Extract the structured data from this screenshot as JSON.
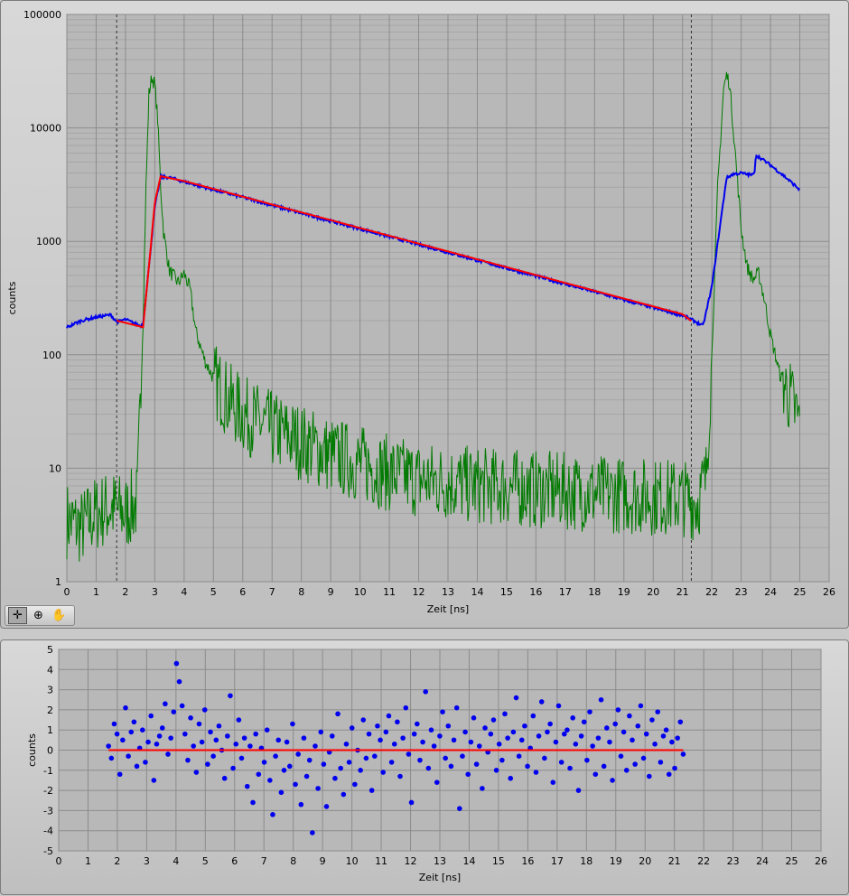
{
  "palette": {
    "tools": [
      {
        "name": "cursor-tool",
        "glyph": "✛"
      },
      {
        "name": "zoom-tool",
        "glyph": "⊕"
      },
      {
        "name": "pan-tool",
        "glyph": "✋"
      }
    ]
  },
  "colors": {
    "measured": "#0000ee",
    "fit": "#ff0000",
    "irf": "#007a00",
    "plot_bg": "#b8b8b8",
    "grid_major": "#8c8c8c",
    "grid_minor": "#a6a6a6"
  },
  "chart_data": [
    {
      "type": "line",
      "xlabel": "Zeit [ns]",
      "ylabel": "counts",
      "yscale": "log",
      "xlim": [
        0,
        26
      ],
      "ylim": [
        1,
        100000
      ],
      "grid": true,
      "x_ticks": [
        "0",
        "1",
        "2",
        "3",
        "4",
        "5",
        "6",
        "7",
        "8",
        "9",
        "10",
        "11",
        "12",
        "13",
        "14",
        "15",
        "16",
        "17",
        "18",
        "19",
        "20",
        "21",
        "22",
        "23",
        "24",
        "25",
        "26"
      ],
      "y_ticks": [
        "1",
        "10",
        "100",
        "1000",
        "10000",
        "100000"
      ],
      "cursors": [
        1.7,
        21.3
      ],
      "series": [
        {
          "color": "#0000ee",
          "points": [
            [
              0,
              175
            ],
            [
              0.5,
              200
            ],
            [
              1,
              215
            ],
            [
              1.5,
              225
            ],
            [
              1.7,
              195
            ],
            [
              2.0,
              205
            ],
            [
              2.5,
              180
            ],
            [
              2.6,
              185
            ],
            [
              2.8,
              600
            ],
            [
              3.0,
              2000
            ],
            [
              3.2,
              3700
            ],
            [
              3.5,
              3650
            ],
            [
              4,
              3350
            ],
            [
              5,
              2850
            ],
            [
              6,
              2450
            ],
            [
              7,
              2080
            ],
            [
              8,
              1770
            ],
            [
              9,
              1510
            ],
            [
              10,
              1290
            ],
            [
              11,
              1100
            ],
            [
              12,
              940
            ],
            [
              13,
              800
            ],
            [
              14,
              680
            ],
            [
              15,
              580
            ],
            [
              16,
              495
            ],
            [
              17,
              420
            ],
            [
              18,
              360
            ],
            [
              19,
              305
            ],
            [
              20,
              260
            ],
            [
              21,
              222
            ],
            [
              21.3,
              205
            ],
            [
              21.7,
              180
            ],
            [
              22.0,
              400
            ],
            [
              22.3,
              1500
            ],
            [
              22.5,
              3600
            ],
            [
              22.7,
              3900
            ],
            [
              23.0,
              4000
            ],
            [
              23.3,
              3850
            ],
            [
              23.45,
              3900
            ],
            [
              23.5,
              5800
            ],
            [
              24,
              4700
            ],
            [
              24.5,
              3700
            ],
            [
              25,
              2850
            ]
          ]
        },
        {
          "color": "#ff0000",
          "points": [
            [
              1.7,
              200
            ],
            [
              2.6,
              175
            ],
            [
              2.8,
              600
            ],
            [
              3.0,
              2200
            ],
            [
              3.2,
              3750
            ],
            [
              4,
              3400
            ],
            [
              5,
              2900
            ],
            [
              6,
              2480
            ],
            [
              7,
              2110
            ],
            [
              8,
              1800
            ],
            [
              9,
              1540
            ],
            [
              10,
              1310
            ],
            [
              11,
              1120
            ],
            [
              12,
              955
            ],
            [
              13,
              815
            ],
            [
              14,
              695
            ],
            [
              15,
              592
            ],
            [
              16,
              505
            ],
            [
              17,
              430
            ],
            [
              18,
              367
            ],
            [
              19,
              313
            ],
            [
              20,
              267
            ],
            [
              21,
              228
            ],
            [
              21.3,
              198
            ]
          ]
        },
        {
          "color": "#007a00",
          "points": [
            [
              0,
              3.5
            ],
            [
              0.5,
              3
            ],
            [
              1,
              4
            ],
            [
              1.5,
              4.5
            ],
            [
              2,
              4
            ],
            [
              2.4,
              5
            ],
            [
              2.5,
              30
            ],
            [
              2.6,
              200
            ],
            [
              2.7,
              3000
            ],
            [
              2.8,
              20000
            ],
            [
              2.9,
              28000
            ],
            [
              3.0,
              24000
            ],
            [
              3.1,
              12000
            ],
            [
              3.2,
              3000
            ],
            [
              3.3,
              1200
            ],
            [
              3.5,
              550
            ],
            [
              3.8,
              430
            ],
            [
              4.0,
              520
            ],
            [
              4.2,
              380
            ],
            [
              4.4,
              160
            ],
            [
              4.7,
              90
            ],
            [
              5,
              62
            ],
            [
              5.5,
              40
            ],
            [
              6,
              30
            ],
            [
              7,
              22
            ],
            [
              8,
              17
            ],
            [
              9,
              13
            ],
            [
              10,
              11
            ],
            [
              11,
              9
            ],
            [
              12,
              8
            ],
            [
              13,
              7.5
            ],
            [
              14,
              7
            ],
            [
              15,
              6.8
            ],
            [
              16,
              6.5
            ],
            [
              17,
              6.3
            ],
            [
              18,
              6
            ],
            [
              19,
              5.8
            ],
            [
              20,
              5.6
            ],
            [
              21,
              5.5
            ],
            [
              21.5,
              5
            ],
            [
              21.8,
              8
            ],
            [
              22.0,
              100
            ],
            [
              22.2,
              3000
            ],
            [
              22.4,
              22000
            ],
            [
              22.5,
              29000
            ],
            [
              22.6,
              25000
            ],
            [
              22.8,
              6000
            ],
            [
              23.0,
              1300
            ],
            [
              23.2,
              600
            ],
            [
              23.4,
              460
            ],
            [
              23.6,
              520
            ],
            [
              23.8,
              300
            ],
            [
              24.0,
              150
            ],
            [
              24.3,
              70
            ],
            [
              24.7,
              40
            ],
            [
              25,
              25
            ]
          ]
        }
      ]
    },
    {
      "type": "scatter",
      "xlabel": "Zeit [ns]",
      "ylabel": "counts",
      "xlim": [
        0,
        26
      ],
      "ylim": [
        -5,
        5
      ],
      "grid": true,
      "x_ticks": [
        "0",
        "1",
        "2",
        "3",
        "4",
        "5",
        "6",
        "7",
        "8",
        "9",
        "10",
        "11",
        "12",
        "13",
        "14",
        "15",
        "16",
        "17",
        "18",
        "19",
        "20",
        "21",
        "22",
        "23",
        "24",
        "25",
        "26"
      ],
      "y_ticks": [
        "-5",
        "-4",
        "-3",
        "-2",
        "-1",
        "0",
        "1",
        "2",
        "3",
        "4",
        "5"
      ],
      "fit_line": {
        "x": [
          1.7,
          21.3
        ],
        "y": 0,
        "color": "#ff0000"
      },
      "points_color": "#0000ee",
      "residuals": [
        0.2,
        -0.4,
        1.3,
        0.8,
        -1.2,
        0.5,
        2.1,
        -0.3,
        0.9,
        1.4,
        -0.8,
        0.1,
        1.0,
        -0.6,
        0.4,
        1.7,
        -1.5,
        0.3,
        0.7,
        1.1,
        2.3,
        -0.2,
        0.6,
        1.9,
        4.3,
        3.4,
        2.2,
        0.8,
        -0.5,
        1.6,
        0.2,
        -1.1,
        1.3,
        0.4,
        2.0,
        -0.7,
        0.9,
        -0.3,
        0.5,
        1.2,
        0.0,
        -1.4,
        0.7,
        2.7,
        -0.9,
        0.3,
        1.5,
        -0.4,
        0.6,
        -1.8,
        0.2,
        -2.6,
        0.8,
        -1.2,
        0.1,
        -0.6,
        1.0,
        -1.5,
        -3.2,
        -0.3,
        0.5,
        -2.1,
        -1.0,
        0.4,
        -0.8,
        1.3,
        -1.7,
        -0.2,
        -2.7,
        0.6,
        -1.3,
        -0.5,
        -4.1,
        0.2,
        -1.9,
        0.9,
        -0.7,
        -2.8,
        -0.1,
        0.7,
        -1.4,
        1.8,
        -0.9,
        -2.2,
        0.3,
        -0.6,
        1.1,
        -1.7,
        0.0,
        -1.0,
        1.5,
        -0.4,
        0.8,
        -2.0,
        -0.3,
        1.2,
        0.5,
        -1.1,
        0.9,
        1.7,
        -0.6,
        0.3,
        1.4,
        -1.3,
        0.6,
        2.1,
        -0.2,
        -2.6,
        0.8,
        1.3,
        -0.5,
        0.4,
        2.9,
        -0.9,
        1.0,
        0.2,
        -1.6,
        0.7,
        1.9,
        -0.4,
        1.2,
        -0.8,
        0.5,
        2.1,
        -2.9,
        -0.3,
        0.9,
        -1.2,
        0.4,
        1.6,
        -0.7,
        0.2,
        -1.9,
        1.1,
        -0.1,
        0.8,
        1.5,
        -1.0,
        0.3,
        -0.5,
        1.8,
        0.6,
        -1.4,
        0.9,
        2.6,
        -0.3,
        0.5,
        1.2,
        -0.8,
        0.1,
        1.7,
        -1.1,
        0.7,
        2.4,
        -0.4,
        0.9,
        1.3,
        -1.6,
        0.4,
        2.2,
        -0.6,
        0.8,
        1.0,
        -0.9,
        1.6,
        0.3,
        -2.0,
        0.7,
        1.4,
        -0.5,
        1.9,
        0.2,
        -1.2,
        0.6,
        2.5,
        -0.8,
        1.1,
        0.4,
        -1.5,
        1.3,
        2.0,
        -0.3,
        0.9,
        -1.0,
        1.7,
        0.5,
        -0.7,
        1.2,
        2.2,
        -0.4,
        0.8,
        -1.3,
        1.5,
        0.3,
        1.9,
        -0.6,
        0.7,
        1.0,
        -1.2,
        0.4,
        -0.9,
        0.6,
        1.4,
        -0.2
      ]
    }
  ]
}
